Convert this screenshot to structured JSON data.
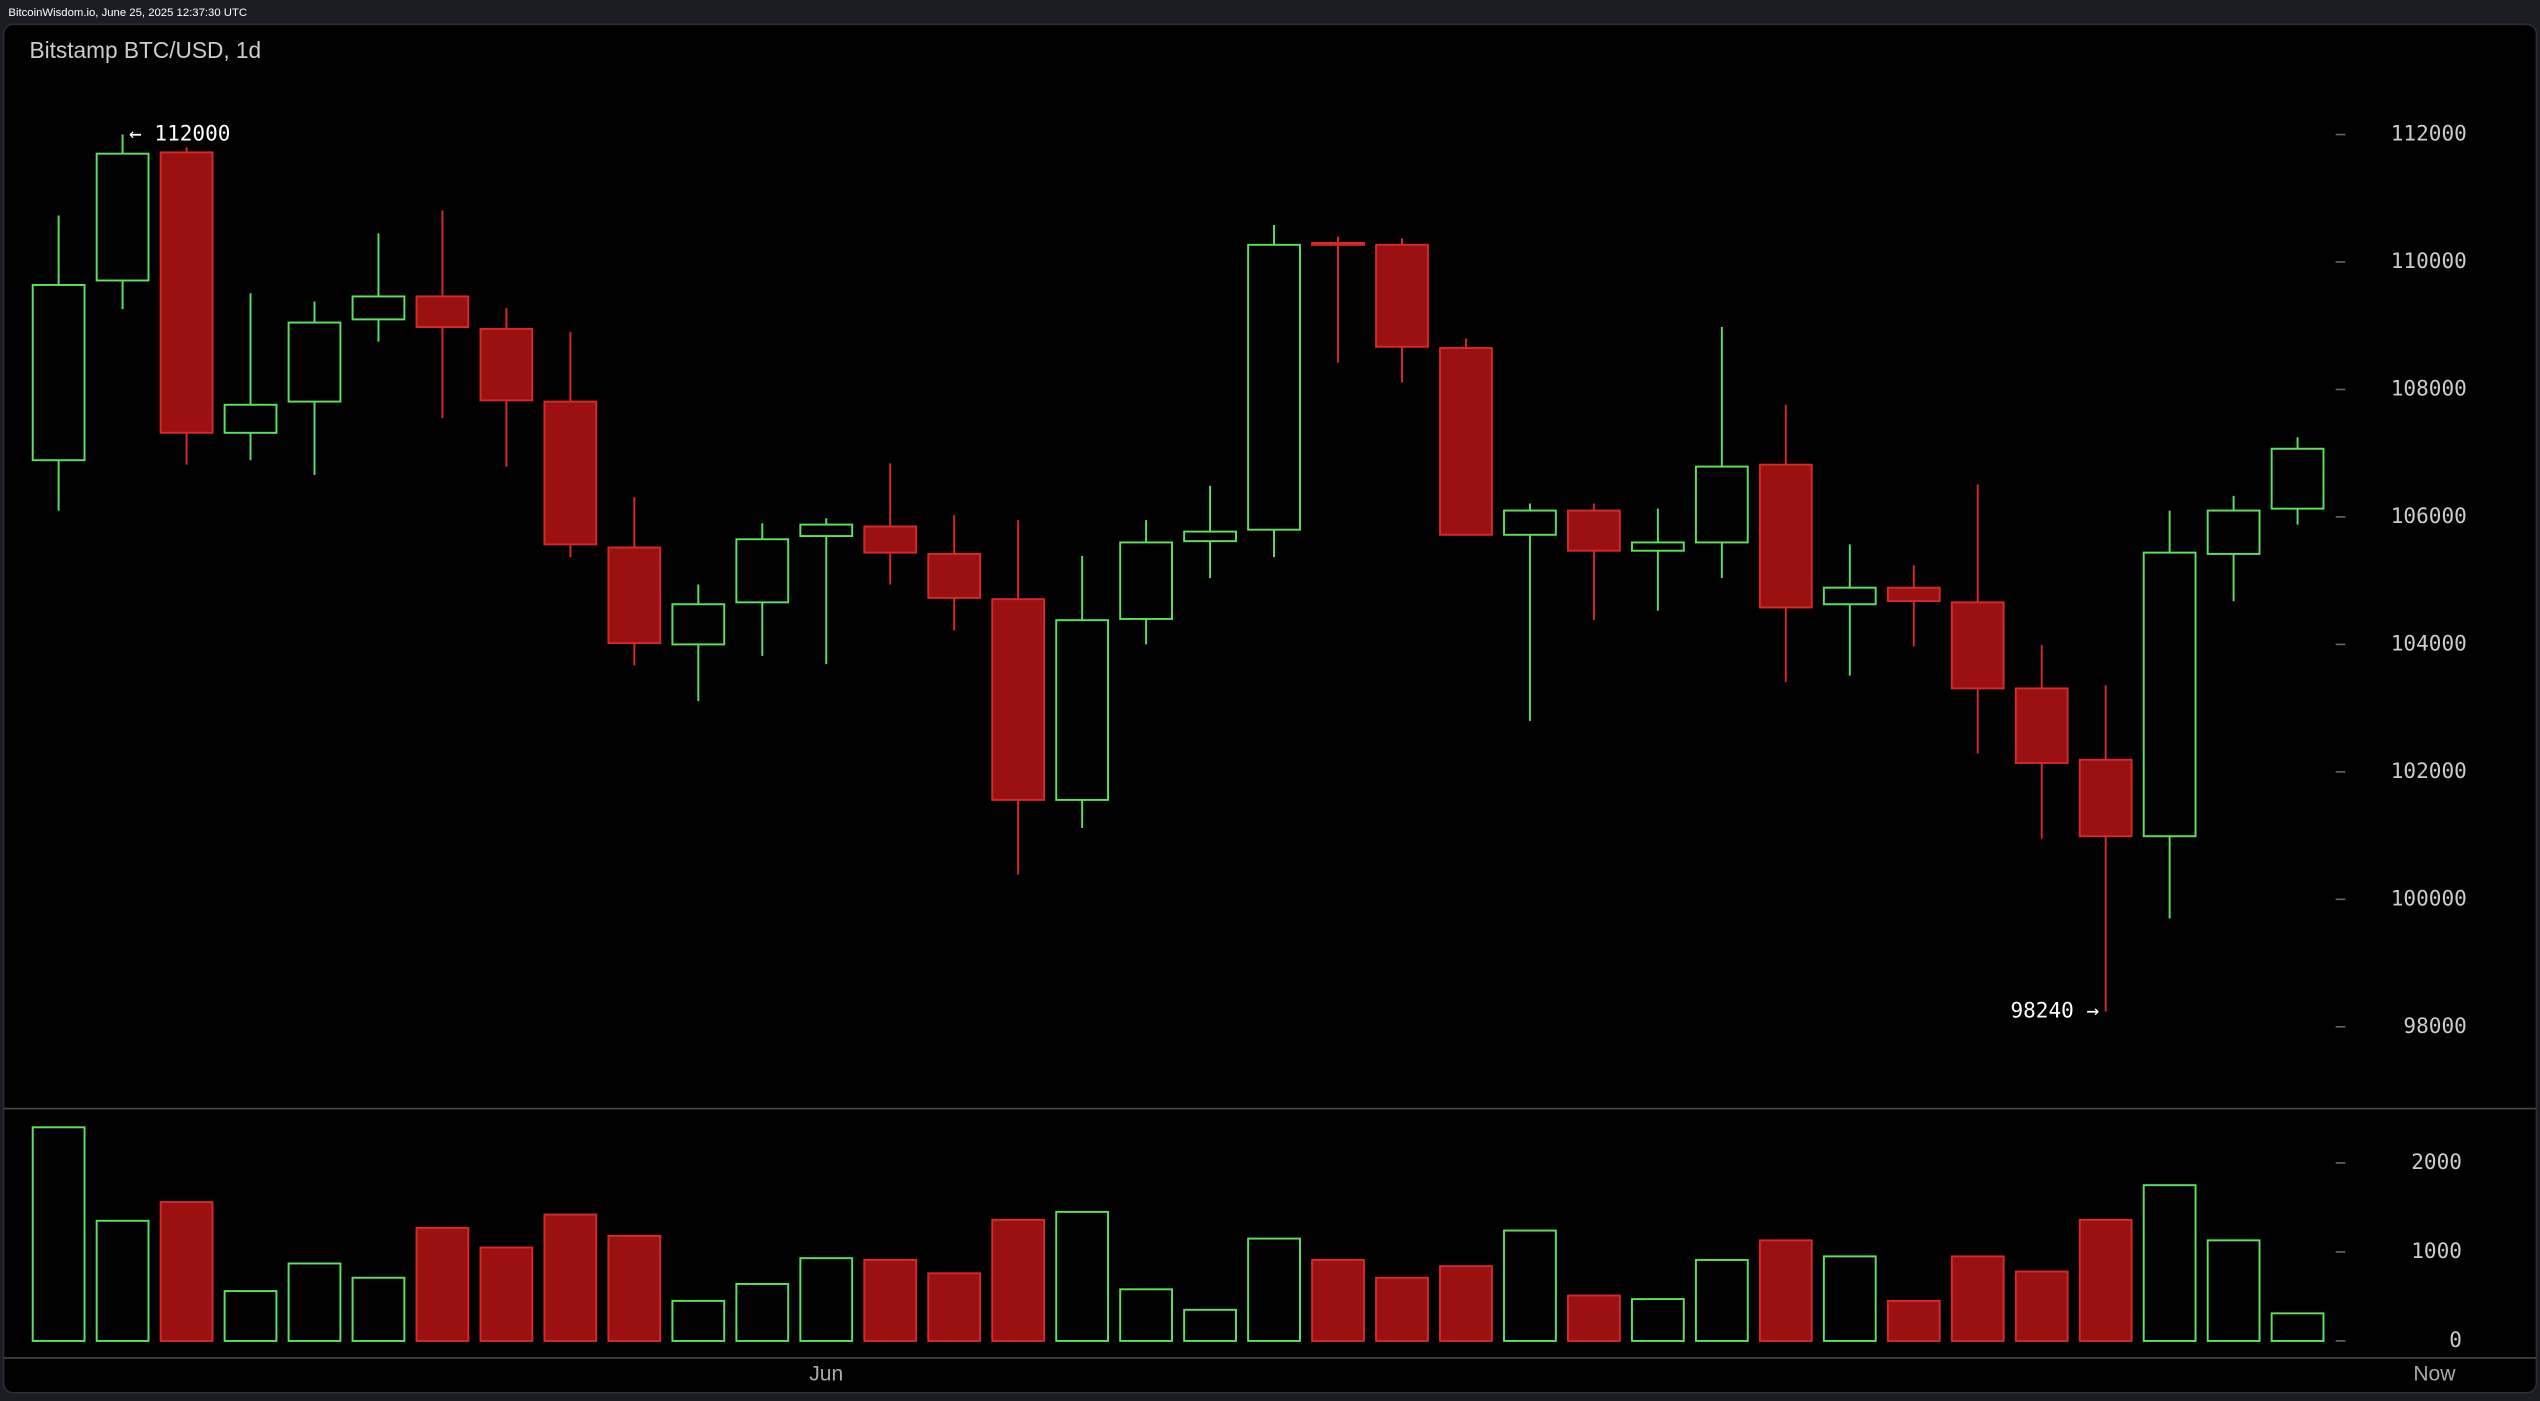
{
  "header": "BitcoinWisdom.io, June 25, 2025 12:37:30 UTC",
  "chart_data": {
    "type": "candlestick",
    "title": "Bitstamp BTC/USD, 1d",
    "categories": [
      null,
      null,
      null,
      null,
      null,
      null,
      null,
      null,
      null,
      null,
      null,
      null,
      "Jun",
      null,
      null,
      null,
      null,
      null,
      null,
      null,
      null,
      null,
      null,
      null,
      null,
      null,
      null,
      null,
      null,
      null,
      null,
      null,
      null,
      null,
      null,
      null
    ],
    "now_label": "Now",
    "open": [
      106890,
      109710,
      111720,
      107320,
      107810,
      109100,
      109460,
      108950,
      107810,
      105520,
      104000,
      104660,
      105700,
      105850,
      105420,
      104710,
      101560,
      104400,
      105620,
      105800,
      110300,
      110270,
      108650,
      105720,
      106100,
      105470,
      105600,
      106820,
      104630,
      104890,
      104660,
      103310,
      102190,
      100990,
      105420,
      106130
    ],
    "high": [
      110730,
      112000,
      111800,
      109510,
      109380,
      110450,
      110810,
      109280,
      108900,
      106310,
      104940,
      105900,
      105980,
      106840,
      106030,
      105950,
      105390,
      105950,
      106490,
      110580,
      110400,
      110370,
      108800,
      106210,
      106210,
      106130,
      108980,
      107760,
      105570,
      105240,
      106510,
      103990,
      103360,
      106100,
      106330,
      107250
    ],
    "low": [
      106100,
      109260,
      106820,
      106890,
      106660,
      108750,
      107550,
      106790,
      105370,
      103670,
      103110,
      103820,
      103690,
      104940,
      104220,
      100390,
      101120,
      104000,
      105040,
      105370,
      108420,
      108110,
      105720,
      102800,
      104380,
      104530,
      105040,
      103410,
      103510,
      103970,
      102290,
      100950,
      98240,
      99700,
      104680,
      105880
    ],
    "close": [
      109640,
      111700,
      107320,
      107760,
      109050,
      109460,
      108980,
      107830,
      105570,
      104020,
      104630,
      105650,
      105880,
      105440,
      104730,
      101560,
      104380,
      105600,
      105770,
      110270,
      110270,
      108670,
      105720,
      106100,
      105470,
      105600,
      106790,
      104580,
      104890,
      104680,
      103310,
      102140,
      100990,
      105440,
      106100,
      107070
    ],
    "volume": [
      2400,
      1350,
      1560,
      560,
      870,
      710,
      1270,
      1050,
      1420,
      1180,
      450,
      640,
      930,
      910,
      760,
      1360,
      1450,
      580,
      350,
      1150,
      910,
      710,
      840,
      1240,
      510,
      470,
      910,
      1130,
      950,
      450,
      950,
      780,
      1360,
      1750,
      1130,
      310
    ],
    "up_color": "#5ee05e",
    "down_color": "#9b1010",
    "down_stroke": "#d42a2a",
    "ylim": [
      96730,
      113730
    ],
    "yticks": [
      98000,
      100000,
      102000,
      104000,
      106000,
      108000,
      110000,
      112000
    ],
    "vlim": [
      0,
      2620
    ],
    "vticks": [
      0,
      1000,
      2000
    ],
    "annotations": [
      {
        "label": "← 112000",
        "value": 112000
      },
      {
        "label": "98240 →",
        "value": 98240
      }
    ]
  }
}
